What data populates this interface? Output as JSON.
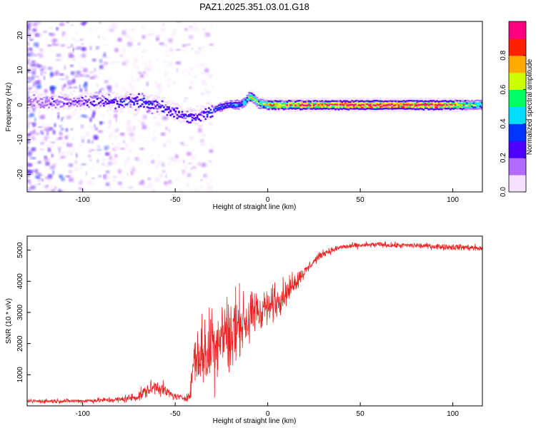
{
  "title": "PAZ1.2025.351.03.01.G18",
  "chart_data": [
    {
      "type": "heatmap",
      "name": "spectrogram",
      "xlabel": "Height of straight line (km)",
      "ylabel": "Frequency (Hz)",
      "xlim": [
        -130,
        116
      ],
      "ylim": [
        -25,
        24
      ],
      "xticks": [
        -100,
        -50,
        0,
        50,
        100
      ],
      "yticks": [
        -20,
        -10,
        0,
        10,
        20
      ],
      "colorbar": {
        "label": "Normalized spectral amplitude",
        "range": [
          0,
          1
        ],
        "ticks": [
          0.0,
          0.2,
          0.4,
          0.6,
          0.8
        ],
        "tick_labels": [
          "0.0",
          "0.2",
          "0.4",
          "0.6",
          "0.8"
        ],
        "colors": [
          "#f5e0ff",
          "#b36bff",
          "#4b00ff",
          "#0035ff",
          "#00ddff",
          "#00ff66",
          "#ccff00",
          "#ffaa00",
          "#ff2000",
          "#ff007f"
        ]
      },
      "ridge_frequency": {
        "height_km": [
          -130,
          -80,
          -70,
          -60,
          -50,
          -45,
          -40,
          -35,
          -30,
          -25,
          -20,
          -15,
          -12,
          -10,
          -8,
          -5,
          0,
          20,
          50,
          100,
          116
        ],
        "freq_hz": [
          1,
          1,
          1,
          0,
          -2,
          -3.5,
          -3.5,
          -3,
          -1.5,
          -0.5,
          0,
          0,
          1,
          2.5,
          2,
          0.5,
          0,
          0,
          0,
          0,
          0
        ]
      },
      "intensity_profile": {
        "height_km": [
          -130,
          -100,
          -80,
          -65,
          -55,
          -45,
          -35,
          -25,
          -15,
          -10,
          -5,
          0,
          20,
          50,
          90,
          100,
          116
        ],
        "amplitude": [
          0.15,
          0.25,
          0.3,
          0.35,
          0.3,
          0.3,
          0.3,
          0.35,
          0.4,
          0.7,
          0.6,
          0.75,
          0.85,
          0.95,
          0.95,
          0.85,
          0.45
        ]
      }
    },
    {
      "type": "line",
      "name": "snr",
      "xlabel": "Height of straight line (km)",
      "ylabel": "SNR (10 * v/v)",
      "xlim": [
        -130,
        116
      ],
      "ylim": [
        0,
        5450
      ],
      "xticks": [
        -100,
        -50,
        0,
        50,
        100
      ],
      "yticks": [
        1000,
        2000,
        3000,
        4000,
        5000
      ],
      "line_color": "#ee2222",
      "series": [
        {
          "name": "SNR",
          "height_km": [
            -130,
            -100,
            -80,
            -70,
            -65,
            -60,
            -55,
            -50,
            -45,
            -42,
            -40,
            -35,
            -30,
            -25,
            -20,
            -15,
            -10,
            -5,
            0,
            5,
            10,
            15,
            20,
            25,
            30,
            40,
            50,
            60,
            70,
            80,
            90,
            100,
            110,
            116
          ],
          "snr_mean": [
            150,
            160,
            200,
            300,
            500,
            650,
            450,
            300,
            250,
            320,
            1500,
            1700,
            1900,
            2200,
            2300,
            2600,
            2800,
            3100,
            3100,
            3400,
            3600,
            4000,
            4300,
            4650,
            4900,
            5100,
            5150,
            5180,
            5150,
            5150,
            5120,
            5100,
            5080,
            5050
          ],
          "snr_noise": [
            60,
            60,
            90,
            140,
            200,
            220,
            180,
            100,
            90,
            120,
            700,
            1100,
            1200,
            1100,
            900,
            800,
            650,
            550,
            500,
            450,
            350,
            250,
            150,
            120,
            100,
            80,
            80,
            80,
            80,
            80,
            80,
            90,
            90,
            90
          ]
        }
      ]
    }
  ]
}
